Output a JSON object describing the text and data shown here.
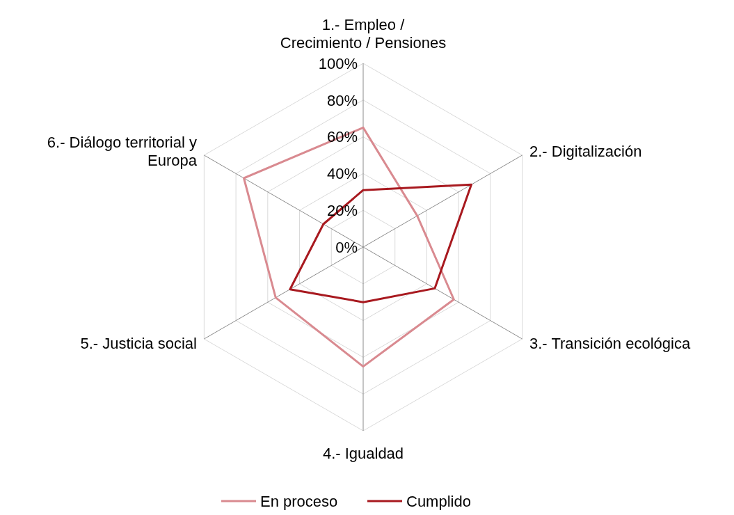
{
  "chart_data": {
    "type": "radar",
    "categories": [
      "1.- Empleo / Crecimiento / Pensiones",
      "2.- Digitalización",
      "3.- Transición ecológica",
      "4.- Igualdad",
      "5.- Justicia social",
      "6.- Diálogo territorial y Europa"
    ],
    "series": [
      {
        "name": "En proceso",
        "color": "#d98a90",
        "values": [
          65,
          34,
          57,
          65,
          55,
          75
        ]
      },
      {
        "name": "Cumplido",
        "color": "#a8191f",
        "values": [
          31,
          68,
          45,
          30,
          46,
          25
        ]
      }
    ],
    "ylim": [
      0,
      100
    ],
    "yticks": [
      {
        "value": 0,
        "label": "0%"
      },
      {
        "value": 20,
        "label": "20%"
      },
      {
        "value": 40,
        "label": "40%"
      },
      {
        "value": 60,
        "label": "60%"
      },
      {
        "value": 80,
        "label": "80%"
      },
      {
        "value": 100,
        "label": "100%"
      }
    ],
    "grid": true,
    "legend": "bottom",
    "marker": "none",
    "line_style": "solid"
  }
}
